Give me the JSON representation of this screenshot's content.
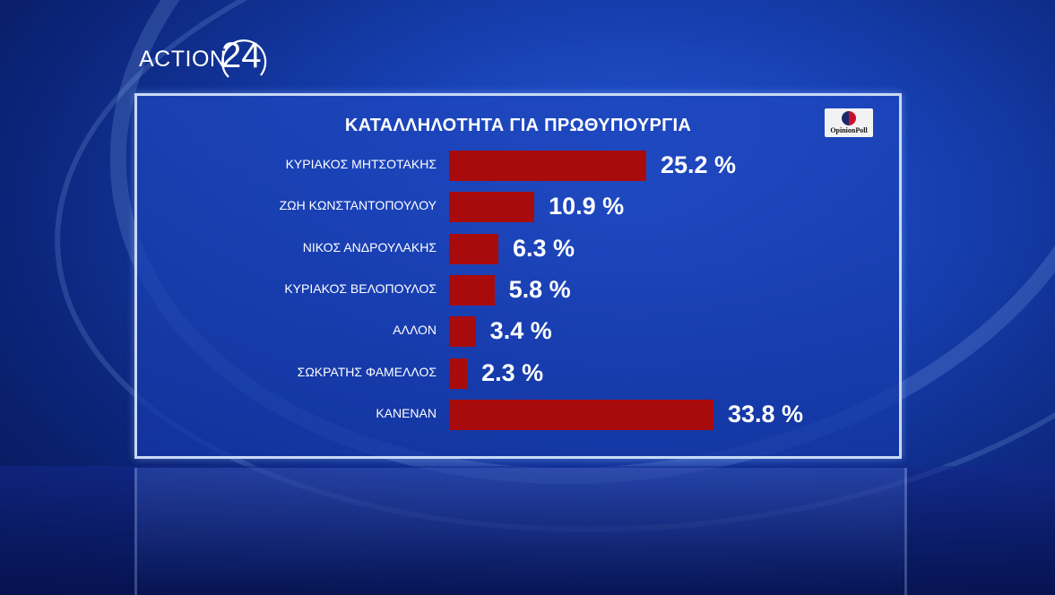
{
  "brand": {
    "channel_word": "ACTION",
    "channel_number": "24"
  },
  "pollster": {
    "label": "OpinionPoll"
  },
  "colors": {
    "bar": "#a80b0b",
    "panel": "#1e46be",
    "text": "#ffffff"
  },
  "chart_data": {
    "type": "bar",
    "orientation": "horizontal",
    "title": "ΚΑΤΑΛΛΗΛΟΤΗΤΑ ΓΙΑ ΠΡΩΘΥΠΟΥΡΓΙΑ",
    "categories": [
      "ΚΥΡΙΑΚΟΣ ΜΗΤΣΟΤΑΚΗΣ",
      "ΖΩΗ ΚΩΝΣΤΑΝΤΟΠΟΥΛΟΥ",
      "ΝΙΚΟΣ ΑΝΔΡΟΥΛΑΚΗΣ",
      "ΚΥΡΙΑΚΟΣ ΒΕΛΟΠΟΥΛΟΣ",
      "ΑΛΛΟΝ",
      "ΣΩΚΡΑΤΗΣ ΦΑΜΕΛΛΟΣ",
      "ΚΑΝΕΝΑΝ"
    ],
    "values": [
      25.2,
      10.9,
      6.3,
      5.8,
      3.4,
      2.3,
      33.8
    ],
    "value_labels": [
      "25.2 %",
      "10.9 %",
      "6.3 %",
      "5.8 %",
      "3.4 %",
      "2.3 %",
      "33.8 %"
    ],
    "xlim": [
      0,
      33.8
    ],
    "grid": false,
    "legend": "none"
  }
}
